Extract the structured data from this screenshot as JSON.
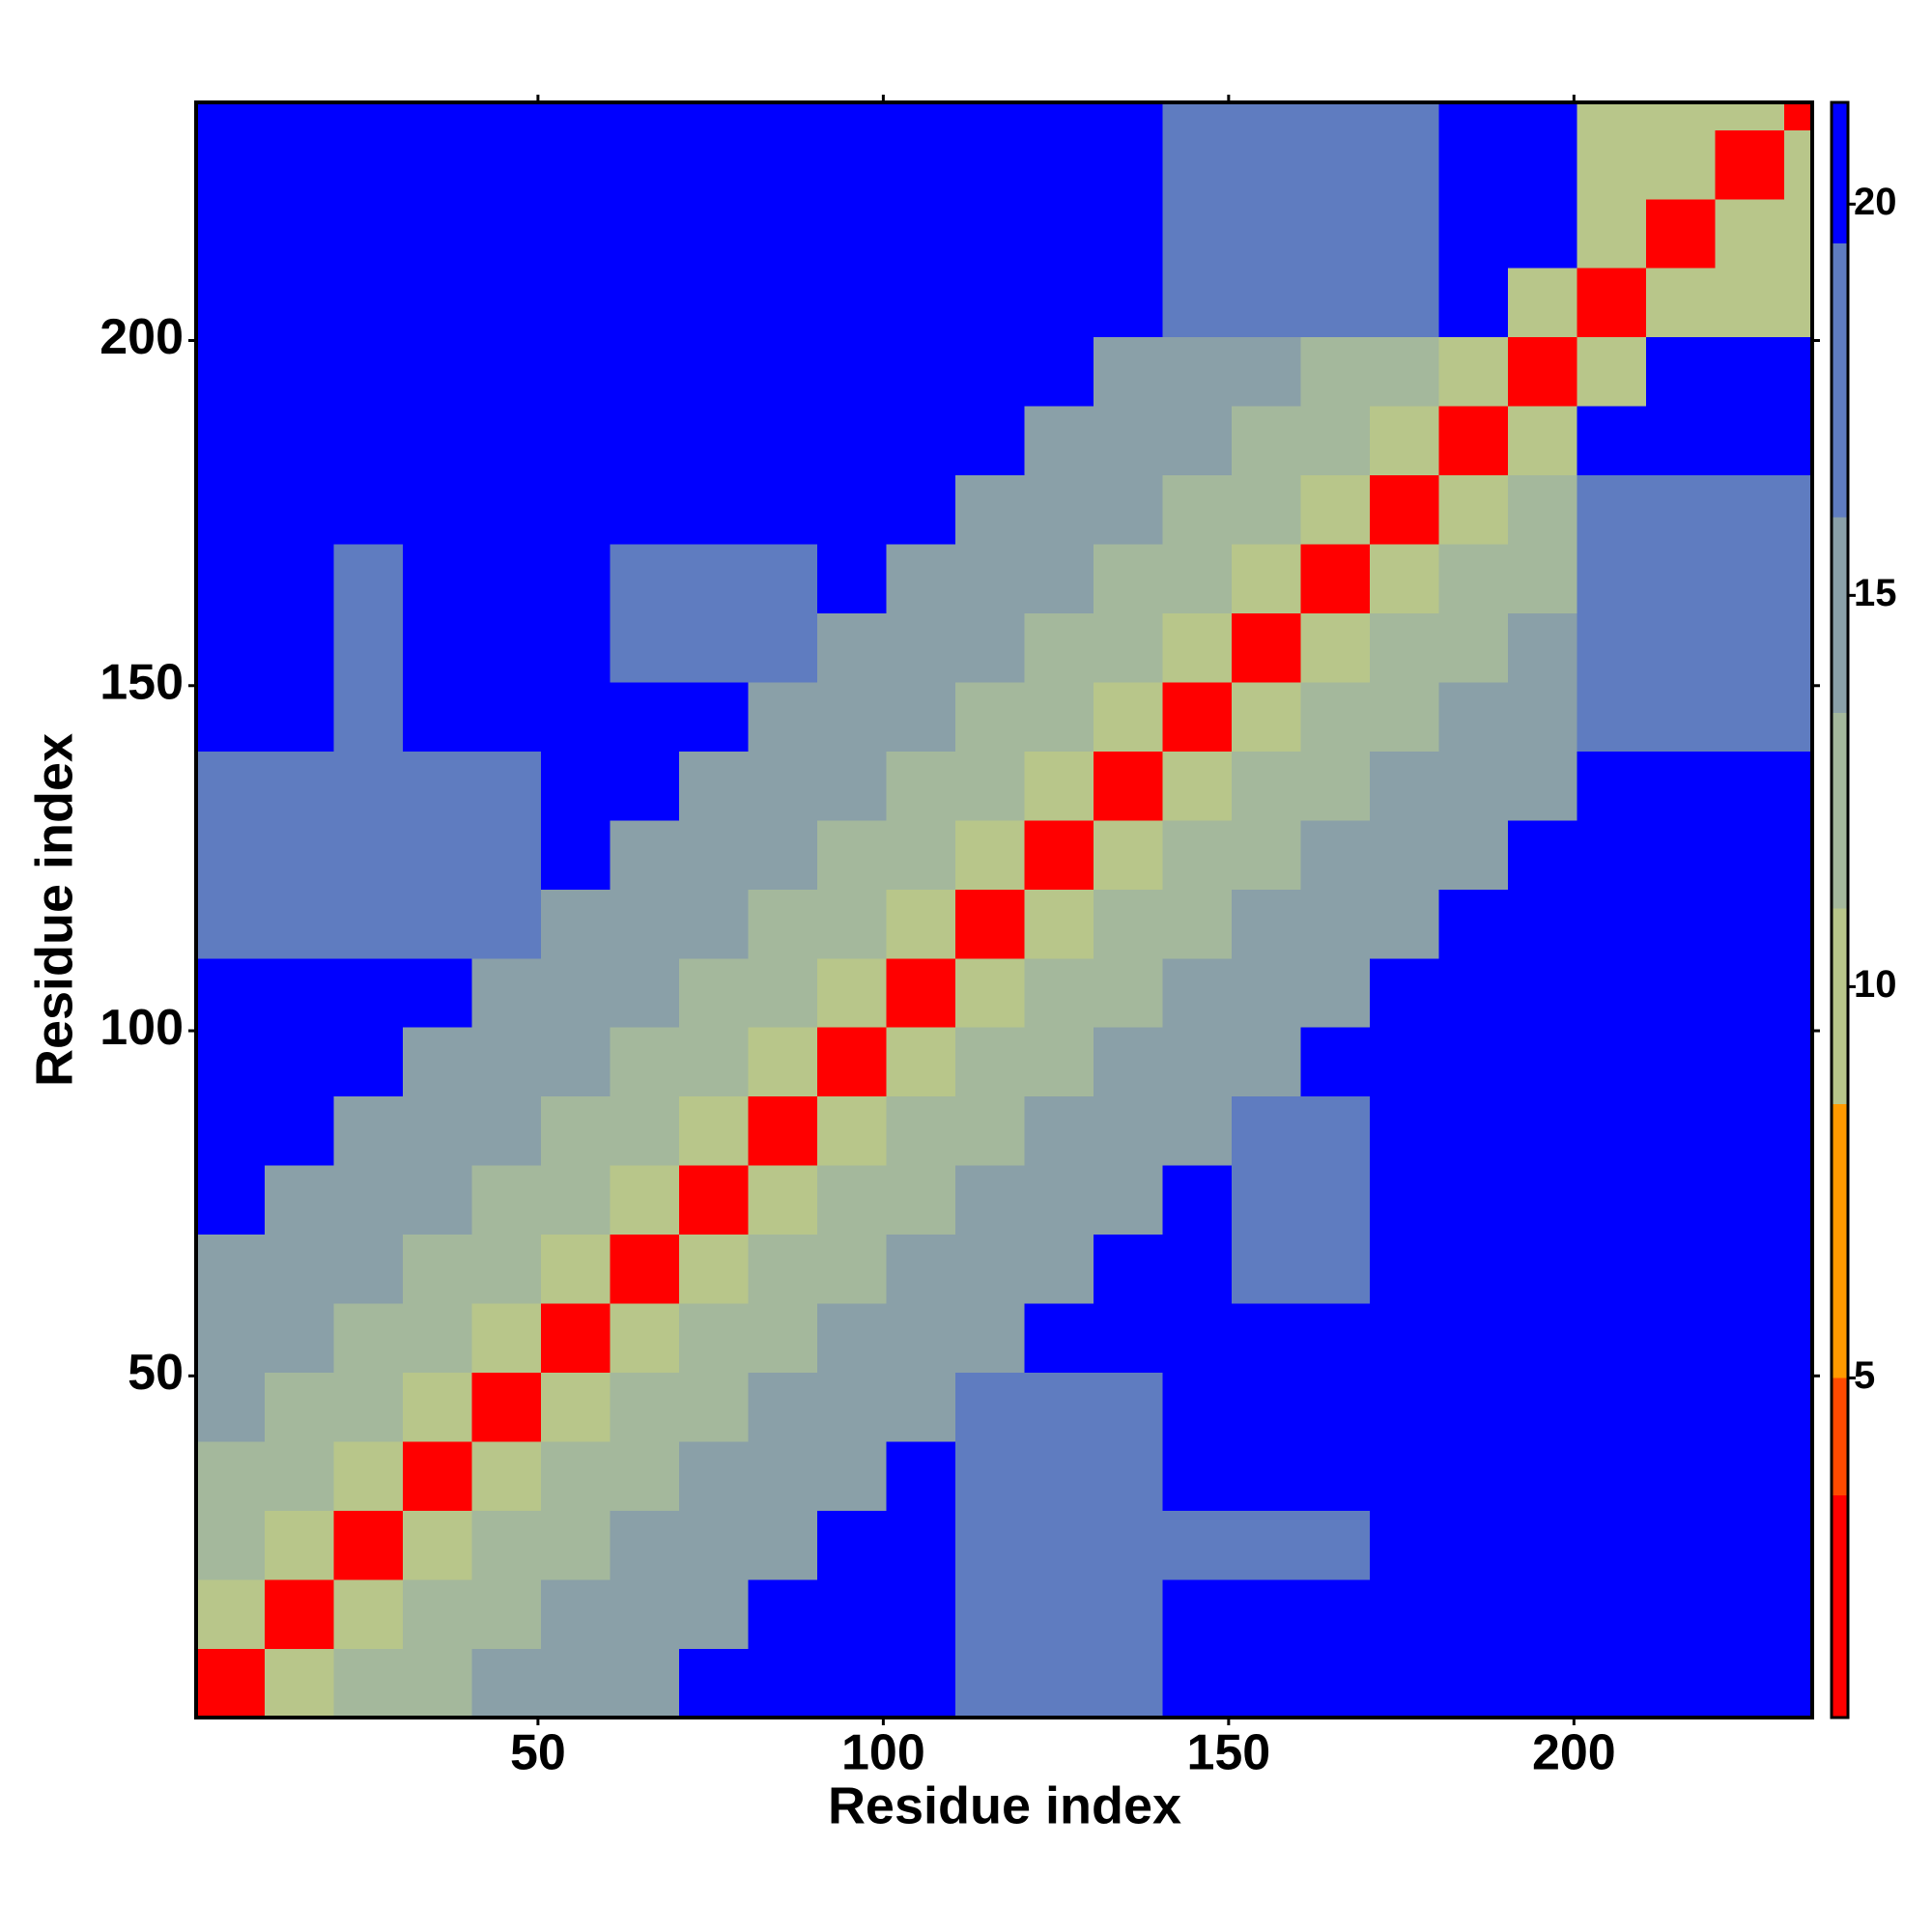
{
  "chart_data": {
    "type": "heatmap",
    "x_label": "Residue index",
    "y_label": "Residue index",
    "xlim": [
      0.5,
      234.5
    ],
    "ylim": [
      0.5,
      234.5
    ],
    "xticks": [
      50,
      100,
      150,
      200
    ],
    "yticks": [
      50,
      100,
      150,
      200
    ],
    "bin_edges": [
      0.5,
      10.5,
      20.5,
      30.5,
      40.5,
      50.5,
      60.5,
      70.5,
      80.5,
      90.5,
      100.5,
      110.5,
      120.5,
      130.5,
      140.5,
      150.5,
      160.5,
      170.5,
      180.5,
      190.5,
      200.5,
      210.5,
      220.5,
      230.5,
      234.5
    ],
    "z": [
      [
        3,
        9,
        12,
        12,
        15,
        15,
        15,
        21,
        21,
        21,
        21,
        17,
        17,
        17,
        21,
        21,
        21,
        21,
        21,
        21,
        21,
        21,
        21,
        21
      ],
      [
        9,
        3,
        9,
        12,
        12,
        15,
        15,
        15,
        21,
        21,
        21,
        17,
        17,
        17,
        21,
        21,
        21,
        21,
        21,
        21,
        21,
        21,
        21,
        21
      ],
      [
        12,
        9,
        3,
        9,
        12,
        12,
        15,
        15,
        15,
        21,
        21,
        17,
        17,
        17,
        17,
        17,
        17,
        21,
        21,
        21,
        21,
        21,
        21,
        21
      ],
      [
        12,
        12,
        9,
        3,
        9,
        12,
        12,
        15,
        15,
        15,
        21,
        17,
        17,
        17,
        21,
        21,
        21,
        21,
        21,
        21,
        21,
        21,
        21,
        21
      ],
      [
        15,
        12,
        12,
        9,
        3,
        9,
        12,
        12,
        15,
        15,
        15,
        17,
        17,
        17,
        21,
        21,
        21,
        21,
        21,
        21,
        21,
        21,
        21,
        21
      ],
      [
        15,
        15,
        12,
        12,
        9,
        3,
        9,
        12,
        12,
        15,
        15,
        15,
        21,
        21,
        21,
        21,
        21,
        21,
        21,
        21,
        21,
        21,
        21,
        21
      ],
      [
        15,
        15,
        15,
        12,
        12,
        9,
        3,
        9,
        12,
        12,
        15,
        15,
        15,
        21,
        21,
        17,
        17,
        21,
        21,
        21,
        21,
        21,
        21,
        21
      ],
      [
        21,
        15,
        15,
        15,
        12,
        12,
        9,
        3,
        9,
        12,
        12,
        15,
        15,
        15,
        21,
        17,
        17,
        21,
        21,
        21,
        21,
        21,
        21,
        21
      ],
      [
        21,
        21,
        15,
        15,
        15,
        12,
        12,
        9,
        3,
        9,
        12,
        12,
        15,
        15,
        15,
        17,
        17,
        21,
        21,
        21,
        21,
        21,
        21,
        21
      ],
      [
        21,
        21,
        21,
        15,
        15,
        15,
        12,
        12,
        9,
        3,
        9,
        12,
        12,
        15,
        15,
        15,
        21,
        21,
        21,
        21,
        21,
        21,
        21,
        21
      ],
      [
        21,
        21,
        21,
        21,
        15,
        15,
        15,
        12,
        12,
        9,
        3,
        9,
        12,
        12,
        15,
        15,
        15,
        21,
        21,
        21,
        21,
        21,
        21,
        21
      ],
      [
        17,
        17,
        17,
        17,
        17,
        15,
        15,
        15,
        12,
        12,
        9,
        3,
        9,
        12,
        12,
        15,
        15,
        15,
        21,
        21,
        21,
        21,
        21,
        21
      ],
      [
        17,
        17,
        17,
        17,
        17,
        21,
        15,
        15,
        15,
        12,
        12,
        9,
        3,
        9,
        12,
        12,
        15,
        15,
        15,
        21,
        21,
        21,
        21,
        21
      ],
      [
        17,
        17,
        17,
        17,
        17,
        21,
        21,
        15,
        15,
        15,
        12,
        12,
        9,
        3,
        9,
        12,
        12,
        15,
        15,
        15,
        21,
        21,
        21,
        21
      ],
      [
        21,
        21,
        17,
        21,
        21,
        21,
        21,
        21,
        15,
        15,
        15,
        12,
        12,
        9,
        3,
        9,
        12,
        12,
        15,
        15,
        17,
        17,
        17,
        17
      ],
      [
        21,
        21,
        17,
        21,
        21,
        21,
        17,
        17,
        17,
        15,
        15,
        15,
        12,
        12,
        9,
        3,
        9,
        12,
        12,
        15,
        17,
        17,
        17,
        17
      ],
      [
        21,
        21,
        17,
        21,
        21,
        21,
        17,
        17,
        17,
        21,
        15,
        15,
        15,
        12,
        12,
        9,
        3,
        9,
        12,
        12,
        17,
        17,
        17,
        17
      ],
      [
        21,
        21,
        21,
        21,
        21,
        21,
        21,
        21,
        21,
        21,
        21,
        15,
        15,
        15,
        12,
        12,
        9,
        3,
        9,
        12,
        17,
        17,
        17,
        17
      ],
      [
        21,
        21,
        21,
        21,
        21,
        21,
        21,
        21,
        21,
        21,
        21,
        21,
        15,
        15,
        15,
        12,
        12,
        9,
        3,
        9,
        21,
        21,
        21,
        21
      ],
      [
        21,
        21,
        21,
        21,
        21,
        21,
        21,
        21,
        21,
        21,
        21,
        21,
        21,
        15,
        15,
        15,
        12,
        12,
        9,
        3,
        9,
        21,
        21,
        21
      ],
      [
        21,
        21,
        21,
        21,
        21,
        21,
        21,
        21,
        21,
        21,
        21,
        21,
        21,
        21,
        17,
        17,
        17,
        17,
        21,
        9,
        3,
        9,
        11,
        11
      ],
      [
        21,
        21,
        21,
        21,
        21,
        21,
        21,
        21,
        21,
        21,
        21,
        21,
        21,
        21,
        17,
        17,
        17,
        17,
        21,
        21,
        9,
        3,
        9,
        11
      ],
      [
        21,
        21,
        21,
        21,
        21,
        21,
        21,
        21,
        21,
        21,
        21,
        21,
        21,
        21,
        17,
        17,
        17,
        17,
        21,
        21,
        11,
        9,
        3,
        9
      ],
      [
        21,
        21,
        21,
        21,
        21,
        21,
        21,
        21,
        21,
        21,
        21,
        21,
        21,
        21,
        17,
        17,
        17,
        17,
        21,
        21,
        11,
        11,
        9,
        3
      ]
    ],
    "clim": [
      0.66,
      21.3
    ],
    "cticks": [
      5,
      10,
      15,
      20
    ],
    "colorscale": [
      {
        "from": 0.66,
        "to": 3.5,
        "color": "#ff0000"
      },
      {
        "from": 3.5,
        "to": 5,
        "color": "#ff4a00"
      },
      {
        "from": 5,
        "to": 8.5,
        "color": "#ff9a00"
      },
      {
        "from": 8.5,
        "to": 11,
        "color": "#b8c68a"
      },
      {
        "from": 11,
        "to": 13.5,
        "color": "#a4b89c"
      },
      {
        "from": 13.5,
        "to": 16,
        "color": "#8aa0a8"
      },
      {
        "from": 16,
        "to": 19.5,
        "color": "#5f7cc0"
      },
      {
        "from": 19.5,
        "to": 21.3,
        "color": "#0000ff"
      }
    ]
  }
}
